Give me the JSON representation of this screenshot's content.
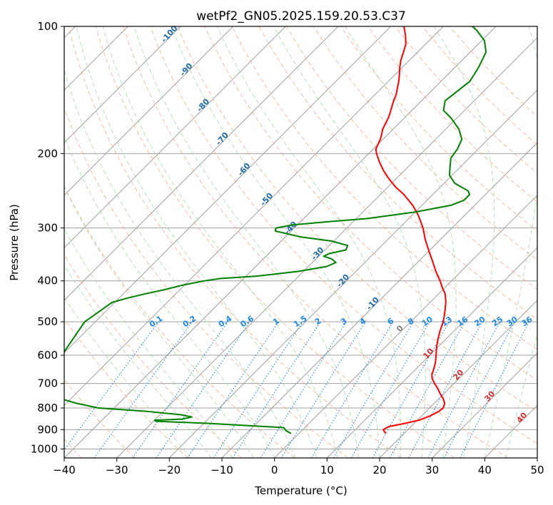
{
  "chart_data": {
    "type": "line",
    "chart_kind": "skew-T log-p",
    "title": "wetPf2_GN05.2025.159.20.53.C37",
    "xlabel": "Temperature (°C)",
    "ylabel": "Pressure (hPa)",
    "xlim": [
      -40,
      50
    ],
    "ylim": [
      1050,
      100
    ],
    "y_scale": "log",
    "grid": true,
    "x_ticks": [
      -40,
      -30,
      -20,
      -10,
      0,
      10,
      20,
      30,
      40,
      50
    ],
    "x_tick_labels": [
      "−40",
      "−30",
      "−20",
      "−10",
      "0",
      "10",
      "20",
      "30",
      "40",
      "50"
    ],
    "y_ticks": [
      100,
      200,
      300,
      400,
      500,
      600,
      700,
      800,
      900,
      1000
    ],
    "y_tick_labels": [
      "100",
      "200",
      "300",
      "400",
      "500",
      "600",
      "700",
      "800",
      "900",
      "1000"
    ],
    "series": [
      {
        "color": "#ff0000",
        "points": [
          [
            919,
            16.5
          ],
          [
            900,
            15.3
          ],
          [
            885,
            15.8
          ],
          [
            870,
            18.2
          ],
          [
            855,
            20.3
          ],
          [
            835,
            21.6
          ],
          [
            815,
            22.4
          ],
          [
            800,
            22.6
          ],
          [
            780,
            22.0
          ],
          [
            760,
            20.8
          ],
          [
            740,
            19.3
          ],
          [
            720,
            17.9
          ],
          [
            700,
            16.3
          ],
          [
            680,
            14.8
          ],
          [
            665,
            14.0
          ],
          [
            650,
            13.5
          ],
          [
            625,
            12.5
          ],
          [
            600,
            11.2
          ],
          [
            575,
            9.8
          ],
          [
            550,
            8.5
          ],
          [
            525,
            7.3
          ],
          [
            500,
            6.2
          ],
          [
            475,
            4.7
          ],
          [
            450,
            3.0
          ],
          [
            430,
            1.3
          ],
          [
            415,
            -0.5
          ],
          [
            400,
            -2.2
          ],
          [
            380,
            -4.8
          ],
          [
            360,
            -7.3
          ],
          [
            340,
            -10.0
          ],
          [
            320,
            -12.8
          ],
          [
            300,
            -15.5
          ],
          [
            280,
            -18.8
          ],
          [
            265,
            -21.8
          ],
          [
            250,
            -25.5
          ],
          [
            240,
            -28.5
          ],
          [
            230,
            -31.2
          ],
          [
            220,
            -33.8
          ],
          [
            210,
            -36.2
          ],
          [
            200,
            -38.5
          ],
          [
            195,
            -39.5
          ],
          [
            190,
            -40.0
          ],
          [
            185,
            -40.5
          ],
          [
            180,
            -41.2
          ],
          [
            175,
            -42.0
          ],
          [
            170,
            -42.5
          ],
          [
            165,
            -43.0
          ],
          [
            160,
            -43.7
          ],
          [
            155,
            -44.5
          ],
          [
            150,
            -45.3
          ],
          [
            145,
            -46.0
          ],
          [
            140,
            -47.0
          ],
          [
            135,
            -48.0
          ],
          [
            130,
            -49.2
          ],
          [
            125,
            -50.5
          ],
          [
            120,
            -51.7
          ],
          [
            115,
            -52.7
          ],
          [
            110,
            -53.8
          ],
          [
            105,
            -55.5
          ],
          [
            100,
            -57.5
          ]
        ]
      },
      {
        "color": "#008000",
        "points": [
          [
            919,
            -1.5
          ],
          [
            905,
            -3.0
          ],
          [
            890,
            -4.0
          ],
          [
            870,
            -19.0
          ],
          [
            860,
            -29.5
          ],
          [
            855,
            -30.0
          ],
          [
            850,
            -25.0
          ],
          [
            840,
            -23.5
          ],
          [
            830,
            -26.0
          ],
          [
            815,
            -33.0
          ],
          [
            800,
            -43.0
          ],
          [
            780,
            -48.0
          ],
          [
            760,
            -52.0
          ],
          [
            600,
            -60.0
          ],
          [
            500,
            -62.0
          ],
          [
            450,
            -60.5
          ],
          [
            440,
            -58.5
          ],
          [
            430,
            -56.0
          ],
          [
            420,
            -53.0
          ],
          [
            410,
            -50.5
          ],
          [
            400,
            -47.0
          ],
          [
            395,
            -44.5
          ],
          [
            390,
            -38.0
          ],
          [
            380,
            -31.0
          ],
          [
            370,
            -26.5
          ],
          [
            362,
            -25.5
          ],
          [
            355,
            -27.0
          ],
          [
            350,
            -29.0
          ],
          [
            345,
            -28.5
          ],
          [
            338,
            -26.0
          ],
          [
            330,
            -26.5
          ],
          [
            322,
            -30.5
          ],
          [
            315,
            -37.0
          ],
          [
            305,
            -43.0
          ],
          [
            300,
            -43.5
          ],
          [
            295,
            -41.0
          ],
          [
            290,
            -35.0
          ],
          [
            285,
            -28.0
          ],
          [
            275,
            -20.0
          ],
          [
            265,
            -14.5
          ],
          [
            258,
            -13.0
          ],
          [
            250,
            -13.0
          ],
          [
            245,
            -14.0
          ],
          [
            235,
            -18.0
          ],
          [
            225,
            -20.5
          ],
          [
            215,
            -22.0
          ],
          [
            205,
            -23.5
          ],
          [
            195,
            -24.0
          ],
          [
            185,
            -25.0
          ],
          [
            175,
            -27.5
          ],
          [
            165,
            -31.0
          ],
          [
            158,
            -34.0
          ],
          [
            150,
            -35.5
          ],
          [
            142,
            -35.0
          ],
          [
            135,
            -34.5
          ],
          [
            125,
            -35.5
          ],
          [
            115,
            -37.0
          ],
          [
            108,
            -39.5
          ],
          [
            102,
            -43.0
          ],
          [
            100,
            -44.5
          ]
        ]
      }
    ],
    "dry_adiabat_labels": [
      "-100",
      "-90",
      "-80",
      "-70",
      "-60",
      "-50",
      "-40",
      "-30",
      "-20",
      "-10"
    ],
    "moist_adiabat_labels": [
      "0",
      "10",
      "20",
      "30",
      "40"
    ],
    "mixing_ratio_labels": [
      "0.1",
      "0.2",
      "0.4",
      "0.6",
      "1",
      "1.5",
      "2",
      "3",
      "4",
      "6",
      "8",
      "10",
      "13",
      "16",
      "20",
      "25",
      "30",
      "36"
    ],
    "colors": {
      "temperature": "#ff0000",
      "dewpoint": "#008000",
      "isotherms": "#a0a0a0",
      "isobars": "#a0a0a0",
      "dry_adiabats": "#f4a582",
      "moist_adiabats": "#a6d8a6",
      "mixing_ratio": "#1e88e5",
      "dry_label": "#1f6aa5",
      "moist_label": "#d32f2f"
    }
  }
}
